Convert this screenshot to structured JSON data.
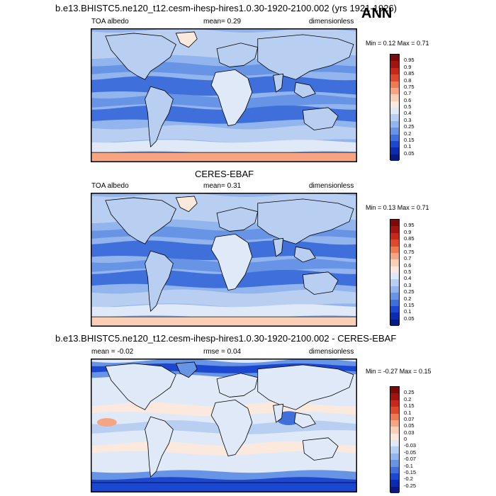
{
  "ann_label": "ANN",
  "panels": [
    {
      "title": "b.e13.BHISTC5.ne120_t12.cesm-ihesp-hires1.0.30-1920-2100.002 (yrs 1921-1926)",
      "left": "TOA albedo",
      "center": "mean=  0.29",
      "right": "dimensionless",
      "minmax": "Min =  0.12 Max =  0.71",
      "colorbar_labels": [
        "0.95",
        "0.9",
        "0.85",
        "0.8",
        "0.75",
        "0.7",
        "0.6",
        "0.5",
        "0.4",
        "0.3",
        "0.25",
        "0.2",
        "0.15",
        "0.1",
        "0.05"
      ],
      "colorbar_colors": [
        "#7a0b0b",
        "#a11410",
        "#c8281a",
        "#dd4a2b",
        "#ee7a52",
        "#f6a583",
        "#fbcfb6",
        "#fbe9de",
        "#dfe9f7",
        "#b9cff2",
        "#93b5ee",
        "#6794e4",
        "#3f6fdb",
        "#1c47cf",
        "#0b2bb0",
        "#061a80"
      ],
      "map_style": "model"
    },
    {
      "title": "CERES-EBAF",
      "left": "TOA albedo",
      "center": "mean=  0.31",
      "right": "dimensionless",
      "minmax": "Min =  0.13 Max =  0.71",
      "colorbar_labels": [
        "0.95",
        "0.9",
        "0.85",
        "0.8",
        "0.75",
        "0.7",
        "0.6",
        "0.5",
        "0.4",
        "0.3",
        "0.25",
        "0.2",
        "0.15",
        "0.1",
        "0.05"
      ],
      "colorbar_colors": [
        "#7a0b0b",
        "#a11410",
        "#c8281a",
        "#dd4a2b",
        "#ee7a52",
        "#f6a583",
        "#fbcfb6",
        "#fbe9de",
        "#dfe9f7",
        "#b9cff2",
        "#93b5ee",
        "#6794e4",
        "#3f6fdb",
        "#1c47cf",
        "#0b2bb0",
        "#061a80"
      ],
      "map_style": "obs"
    },
    {
      "title": "b.e13.BHISTC5.ne120_t12.cesm-ihesp-hires1.0.30-1920-2100.002 - CERES-EBAF",
      "left": "mean =  -0.02",
      "center": "rmse =  0.04",
      "right": "dimensionless",
      "minmax": "Min =  -0.27 Max =  0.15",
      "colorbar_labels": [
        "0.25",
        "0.2",
        "0.15",
        "0.1",
        "0.07",
        "0.05",
        "0.03",
        "0",
        "-0.03",
        "-0.05",
        "-0.07",
        "-0.1",
        "-0.15",
        "-0.2",
        "-0.25"
      ],
      "colorbar_colors": [
        "#7a0b0b",
        "#a11410",
        "#c8281a",
        "#dd4a2b",
        "#ee7a52",
        "#f6a583",
        "#fbcfb6",
        "#fbe9de",
        "#dfe9f7",
        "#b9cff2",
        "#93b5ee",
        "#6794e4",
        "#3f6fdb",
        "#1c47cf",
        "#0b2bb0",
        "#061a80"
      ],
      "map_style": "diff"
    }
  ]
}
